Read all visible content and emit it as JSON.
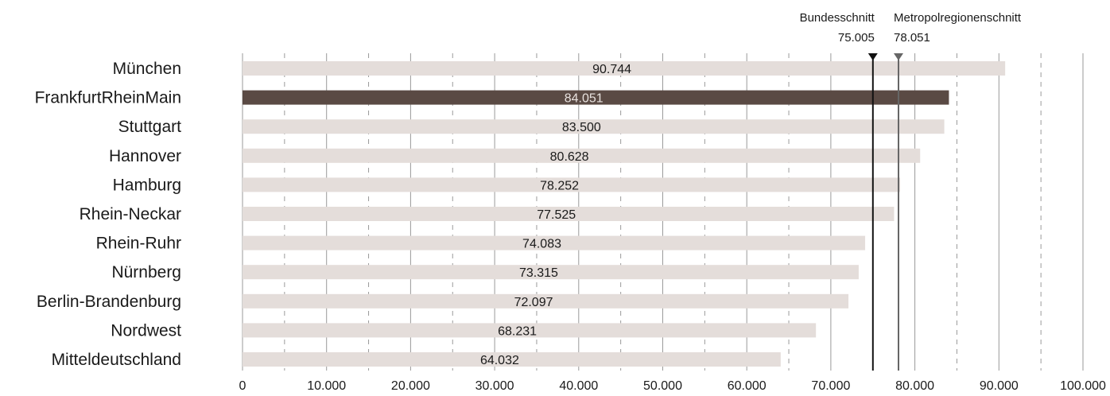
{
  "chart_data": {
    "type": "bar",
    "orientation": "horizontal",
    "categories": [
      "München",
      "FrankfurtRheinMain",
      "Stuttgart",
      "Hannover",
      "Hamburg",
      "Rhein-Neckar",
      "Rhein-Ruhr",
      "Nürnberg",
      "Berlin-Brandenburg",
      "Nordwest",
      "Mitteldeutschland"
    ],
    "values": [
      90744,
      84051,
      83500,
      80628,
      78252,
      77525,
      74083,
      73315,
      72097,
      68231,
      64032
    ],
    "value_labels": [
      "90.744",
      "84.051",
      "83.500",
      "80.628",
      "78.252",
      "77.525",
      "74.083",
      "73.315",
      "72.097",
      "68.231",
      "64.032"
    ],
    "highlight_category": "FrankfurtRheinMain",
    "xlim": [
      0,
      100000
    ],
    "x_ticks": [
      0,
      10000,
      20000,
      30000,
      40000,
      50000,
      60000,
      70000,
      80000,
      90000,
      100000
    ],
    "x_tick_labels": [
      "0",
      "10.000",
      "20.000",
      "30.000",
      "40.000",
      "50.000",
      "60.000",
      "70.000",
      "80.000",
      "90.000",
      "100.000"
    ],
    "grid": true,
    "reference_lines": [
      {
        "name": "Bundesschnitt",
        "value": 75005,
        "label": "75.005",
        "color": "#111111"
      },
      {
        "name": "Metropolregionenschnitt",
        "value": 78051,
        "label": "78.051",
        "color": "#666666"
      }
    ],
    "colors": {
      "bar": "#e4ddda",
      "highlight_bar": "#5a4a44",
      "grid_major": "#9a9a9a",
      "grid_minor": "#9a9a9a"
    }
  }
}
